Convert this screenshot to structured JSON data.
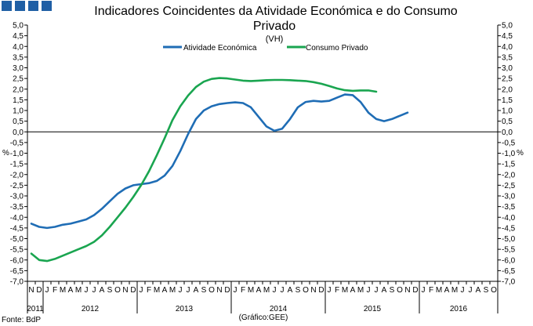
{
  "colors": {
    "brand_squares": "#1f5fa5",
    "atividade": "#1f6db5",
    "consumo": "#1aa550",
    "grid": "#000000"
  },
  "chart_data": {
    "type": "line",
    "title": "Indicadores Coincidentes da Atividade Económica e do Consumo Privado",
    "title_line1": "Indicadores Coincidentes da Atividade Económica e do Consumo",
    "title_line2": "Privado",
    "subtitle": "(VH)",
    "ylabel_left": "%",
    "ylabel_right": "%",
    "ylim": [
      -7.0,
      5.0
    ],
    "y_ticks": [
      "5,0",
      "4,5",
      "4,0",
      "3,5",
      "3,0",
      "2,5",
      "2,0",
      "1,5",
      "1,0",
      "0,5",
      "0,0",
      "-0,5",
      "-1,0",
      "-1,5",
      "-2,0",
      "-2,5",
      "-3,0",
      "-3,5",
      "-4,0",
      "-4,5",
      "-5,0",
      "-5,5",
      "-6,0",
      "-6,5",
      "-7,0"
    ],
    "month_labels": [
      "N",
      "D",
      "J",
      "F",
      "M",
      "A",
      "M",
      "J",
      "J",
      "A",
      "S",
      "O",
      "N",
      "D",
      "J",
      "F",
      "M",
      "A",
      "M",
      "J",
      "J",
      "A",
      "S",
      "O",
      "N",
      "D",
      "J",
      "F",
      "M",
      "A",
      "M",
      "J",
      "J",
      "A",
      "S",
      "O",
      "N",
      "D",
      "J",
      "F",
      "M",
      "A",
      "M",
      "J",
      "J",
      "A",
      "S",
      "O",
      "N",
      "D",
      "J",
      "F",
      "M",
      "A",
      "M",
      "J",
      "J",
      "A",
      "S",
      "O"
    ],
    "year_labels": [
      {
        "label": "2011",
        "start": 0,
        "end": 1
      },
      {
        "label": "2012",
        "start": 2,
        "end": 13
      },
      {
        "label": "2013",
        "start": 14,
        "end": 25
      },
      {
        "label": "2014",
        "start": 26,
        "end": 37
      },
      {
        "label": "2015",
        "start": 38,
        "end": 49
      },
      {
        "label": "2016",
        "start": 50,
        "end": 59
      }
    ],
    "legend": [
      "Atividade Económica",
      "Consumo Privado"
    ],
    "legend_placement": "top-center",
    "series": [
      {
        "name": "Atividade Económica",
        "color": "#1f6db5",
        "values": [
          -4.3,
          -4.45,
          -4.5,
          -4.45,
          -4.35,
          -4.3,
          -4.2,
          -4.1,
          -3.9,
          -3.6,
          -3.25,
          -2.9,
          -2.65,
          -2.5,
          -2.45,
          -2.4,
          -2.3,
          -2.05,
          -1.6,
          -0.9,
          -0.1,
          0.6,
          1.0,
          1.2,
          1.3,
          1.35,
          1.38,
          1.35,
          1.15,
          0.7,
          0.25,
          0.05,
          0.15,
          0.6,
          1.15,
          1.4,
          1.45,
          1.42,
          1.45,
          1.6,
          1.75,
          1.72,
          1.4,
          0.9,
          0.6,
          0.5,
          0.6,
          0.75,
          0.9
        ]
      },
      {
        "name": "Consumo Privado",
        "color": "#1aa550",
        "values": [
          -5.7,
          -6.0,
          -6.05,
          -5.95,
          -5.8,
          -5.65,
          -5.5,
          -5.35,
          -5.15,
          -4.85,
          -4.45,
          -4.0,
          -3.55,
          -3.05,
          -2.5,
          -1.85,
          -1.1,
          -0.3,
          0.55,
          1.2,
          1.7,
          2.1,
          2.35,
          2.48,
          2.52,
          2.5,
          2.45,
          2.4,
          2.38,
          2.4,
          2.42,
          2.43,
          2.43,
          2.42,
          2.4,
          2.38,
          2.33,
          2.25,
          2.15,
          2.03,
          1.95,
          1.92,
          1.94,
          1.94,
          1.88
        ]
      }
    ],
    "source_note": "Fonte: BdP",
    "graph_credit": "(Gráfico:GEE)"
  }
}
